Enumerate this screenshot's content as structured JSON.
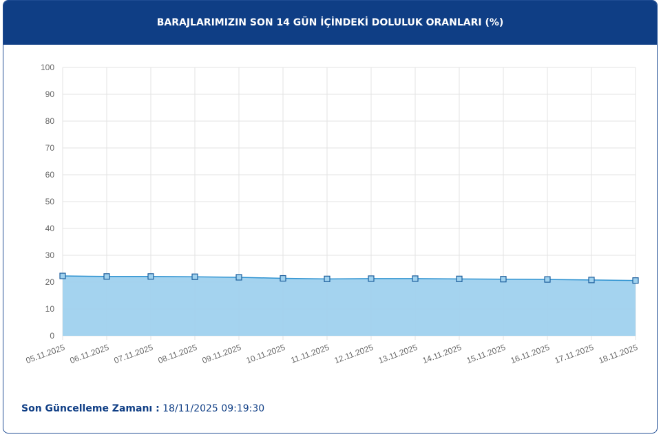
{
  "chart_data": {
    "type": "area",
    "title": "BARAJLARIMIZIN SON 14 GÜN İÇİNDEKİ DOLULUK ORANLARI (%)",
    "categories": [
      "05.11.2025",
      "06.11.2025",
      "07.11.2025",
      "08.11.2025",
      "09.11.2025",
      "10.11.2025",
      "11.11.2025",
      "12.11.2025",
      "13.11.2025",
      "14.11.2025",
      "15.11.2025",
      "16.11.2025",
      "17.11.2025",
      "18.11.2025"
    ],
    "values": [
      22.3,
      22.1,
      22.1,
      22.0,
      21.8,
      21.4,
      21.2,
      21.3,
      21.3,
      21.2,
      21.1,
      21.0,
      20.8,
      20.6
    ],
    "color": "#2f93d1",
    "fill": "#9fd1ee",
    "ylim": [
      0,
      100
    ],
    "yticks": [
      0,
      10,
      20,
      30,
      40,
      50,
      60,
      70,
      80,
      90,
      100
    ],
    "grid": true
  },
  "footer": {
    "label": "Son Güncelleme Zamanı :",
    "value": "18/11/2025 09:19:30"
  }
}
